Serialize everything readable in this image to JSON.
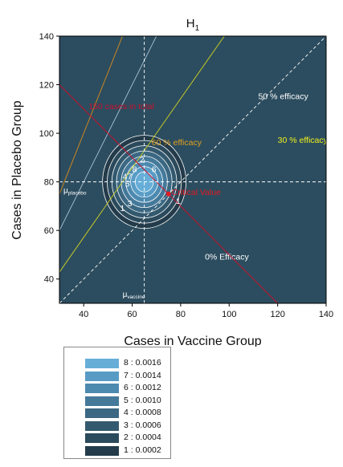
{
  "chart_data": {
    "type": "contour",
    "title": "H",
    "title_subscript": "1",
    "xlabel": "Cases in Vaccine Group",
    "ylabel": "Cases in Placebo Group",
    "xlim": [
      30,
      140
    ],
    "ylim": [
      30,
      140
    ],
    "xticks": [
      40,
      60,
      80,
      100,
      120,
      140
    ],
    "yticks": [
      40,
      60,
      80,
      100,
      120,
      140
    ],
    "background_color": "#2c4d5f",
    "mu_vaccine": 65,
    "mu_placebo": 80,
    "mu_placebo_label": "μ",
    "mu_placebo_sub": "placebo",
    "mu_vaccine_label": "μ",
    "mu_vaccine_sub": "vaccine",
    "efficacy_lines": [
      {
        "name": "0% Efficacy",
        "slope": 1.0,
        "color": "#ffffff",
        "dashed": true,
        "label_x": 90,
        "label_y": 48,
        "label_color": "#ffffff"
      },
      {
        "name": "30 % efficacy",
        "slope": 1.4286,
        "color": "#cfd323",
        "dashed": false,
        "label_x": 120,
        "label_y": 96,
        "label_color": "#f2f21a"
      },
      {
        "name": "50 % efficacy",
        "slope": 2.0,
        "color": "#a8c4d4",
        "dashed": false,
        "label_x": 112,
        "label_y": 114,
        "label_color": "#ffffff"
      },
      {
        "name": "60 % efficacy",
        "slope": 2.5,
        "color": "#d58a1e",
        "dashed": false,
        "label_x": 68,
        "label_y": 95,
        "label_color": "#e0a020"
      }
    ],
    "total_cases_line": {
      "name": "150 cases in total",
      "total": 150,
      "color": "#c8102e",
      "label_x": 42,
      "label_y": 110
    },
    "critical_value": {
      "name": "Critical Value",
      "x": 75,
      "y": 75,
      "color": "#e01b24"
    },
    "contour_levels": [
      {
        "level": 1,
        "value": "0.0002",
        "color": "#233b4a"
      },
      {
        "level": 2,
        "value": "0.0004",
        "color": "#2b4a5c"
      },
      {
        "level": 3,
        "value": "0.0006",
        "color": "#33596e"
      },
      {
        "level": 4,
        "value": "0.0008",
        "color": "#3b6883"
      },
      {
        "level": 5,
        "value": "0.0010",
        "color": "#44799a"
      },
      {
        "level": 6,
        "value": "0.0012",
        "color": "#4d8ab0"
      },
      {
        "level": 7,
        "value": "0.0014",
        "color": "#589cc5"
      },
      {
        "level": 8,
        "value": "0.0016",
        "color": "#66aed8"
      }
    ],
    "contour_labels": [
      {
        "text": "1",
        "x": 56,
        "y": 68
      },
      {
        "text": "3",
        "x": 59,
        "y": 70
      },
      {
        "text": "2",
        "x": 64,
        "y": 88
      },
      {
        "text": "6",
        "x": 69,
        "y": 84
      },
      {
        "text": "8",
        "x": 61,
        "y": 84
      },
      {
        "text": "4",
        "x": 57,
        "y": 81
      },
      {
        "text": "7",
        "x": 59,
        "y": 81
      },
      {
        "text": "5",
        "x": 58,
        "y": 78
      },
      {
        "text": "1",
        "x": 79,
        "y": 71
      }
    ],
    "legend_order": [
      8,
      7,
      6,
      5,
      4,
      3,
      2,
      1
    ]
  }
}
